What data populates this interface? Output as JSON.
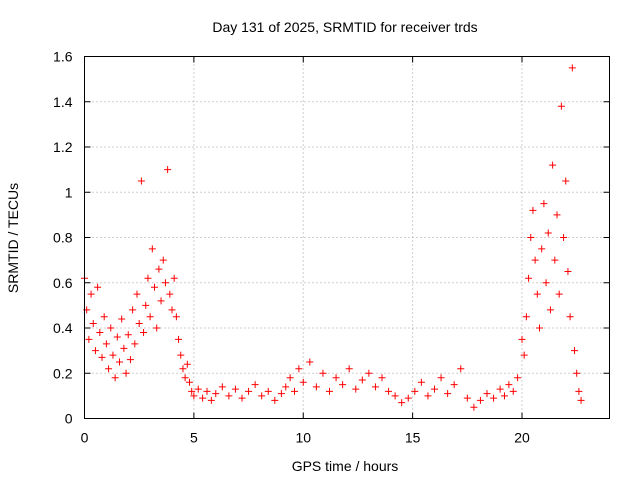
{
  "chart_data": {
    "type": "scatter",
    "title": "Day 131 of 2025, SRMTID for receiver trds",
    "xlabel": "GPS time / hours",
    "ylabel": "SRMTID / TECUs",
    "xlim": [
      0,
      24
    ],
    "ylim": [
      0,
      1.6
    ],
    "x_ticks": [
      0,
      5,
      10,
      15,
      20
    ],
    "x_tick_labels": [
      "0",
      "5",
      "10",
      "15",
      "20"
    ],
    "y_ticks": [
      0,
      0.2,
      0.4,
      0.6,
      0.8,
      1,
      1.2,
      1.4,
      1.6
    ],
    "y_tick_labels": [
      "0",
      "0.2",
      "0.4",
      "0.6",
      "0.8",
      "1",
      "1.2",
      "1.4",
      "1.6"
    ],
    "grid": true,
    "marker": "plus",
    "color": "#ff0000",
    "series": [
      {
        "name": "SRMTID",
        "x": [
          0.0,
          0.1,
          0.2,
          0.3,
          0.4,
          0.5,
          0.6,
          0.7,
          0.8,
          0.9,
          1.0,
          1.1,
          1.2,
          1.3,
          1.4,
          1.5,
          1.6,
          1.7,
          1.8,
          1.9,
          2.0,
          2.1,
          2.2,
          2.3,
          2.4,
          2.5,
          2.6,
          2.7,
          2.8,
          2.9,
          3.0,
          3.1,
          3.2,
          3.3,
          3.4,
          3.5,
          3.6,
          3.7,
          3.8,
          3.9,
          4.0,
          4.1,
          4.2,
          4.3,
          4.4,
          4.5,
          4.6,
          4.7,
          4.8,
          4.9,
          5.0,
          5.2,
          5.4,
          5.6,
          5.8,
          6.0,
          6.3,
          6.6,
          6.9,
          7.2,
          7.5,
          7.8,
          8.1,
          8.4,
          8.7,
          9.0,
          9.2,
          9.4,
          9.6,
          9.8,
          10.0,
          10.3,
          10.6,
          10.9,
          11.2,
          11.5,
          11.8,
          12.1,
          12.4,
          12.7,
          13.0,
          13.3,
          13.6,
          13.9,
          14.2,
          14.5,
          14.8,
          15.1,
          15.4,
          15.7,
          16.0,
          16.3,
          16.6,
          16.9,
          17.2,
          17.5,
          17.8,
          18.1,
          18.4,
          18.7,
          19.0,
          19.2,
          19.4,
          19.6,
          19.8,
          20.0,
          20.1,
          20.2,
          20.3,
          20.4,
          20.5,
          20.6,
          20.7,
          20.8,
          20.9,
          21.0,
          21.1,
          21.2,
          21.3,
          21.4,
          21.5,
          21.6,
          21.7,
          21.8,
          21.9,
          22.0,
          22.1,
          22.2,
          22.3,
          22.4,
          22.5,
          22.6,
          22.7
        ],
        "y": [
          0.62,
          0.48,
          0.35,
          0.55,
          0.42,
          0.3,
          0.58,
          0.38,
          0.27,
          0.45,
          0.33,
          0.22,
          0.4,
          0.28,
          0.18,
          0.36,
          0.25,
          0.44,
          0.31,
          0.2,
          0.37,
          0.26,
          0.48,
          0.33,
          0.55,
          0.42,
          1.05,
          0.38,
          0.5,
          0.62,
          0.45,
          0.75,
          0.58,
          0.4,
          0.66,
          0.52,
          0.7,
          0.6,
          1.1,
          0.55,
          0.48,
          0.62,
          0.45,
          0.35,
          0.28,
          0.22,
          0.18,
          0.24,
          0.16,
          0.12,
          0.1,
          0.13,
          0.09,
          0.12,
          0.08,
          0.11,
          0.14,
          0.1,
          0.13,
          0.09,
          0.12,
          0.15,
          0.1,
          0.12,
          0.08,
          0.11,
          0.14,
          0.18,
          0.12,
          0.22,
          0.16,
          0.25,
          0.14,
          0.2,
          0.12,
          0.18,
          0.15,
          0.22,
          0.13,
          0.17,
          0.2,
          0.14,
          0.18,
          0.12,
          0.1,
          0.07,
          0.09,
          0.12,
          0.16,
          0.1,
          0.13,
          0.18,
          0.11,
          0.15,
          0.22,
          0.09,
          0.05,
          0.08,
          0.11,
          0.09,
          0.13,
          0.1,
          0.15,
          0.12,
          0.18,
          0.35,
          0.28,
          0.45,
          0.62,
          0.8,
          0.92,
          0.7,
          0.55,
          0.4,
          0.75,
          0.95,
          0.6,
          0.82,
          0.48,
          1.12,
          0.7,
          0.9,
          0.55,
          1.38,
          0.8,
          1.05,
          0.65,
          0.45,
          1.55,
          0.3,
          0.2,
          0.12,
          0.08
        ]
      }
    ]
  }
}
